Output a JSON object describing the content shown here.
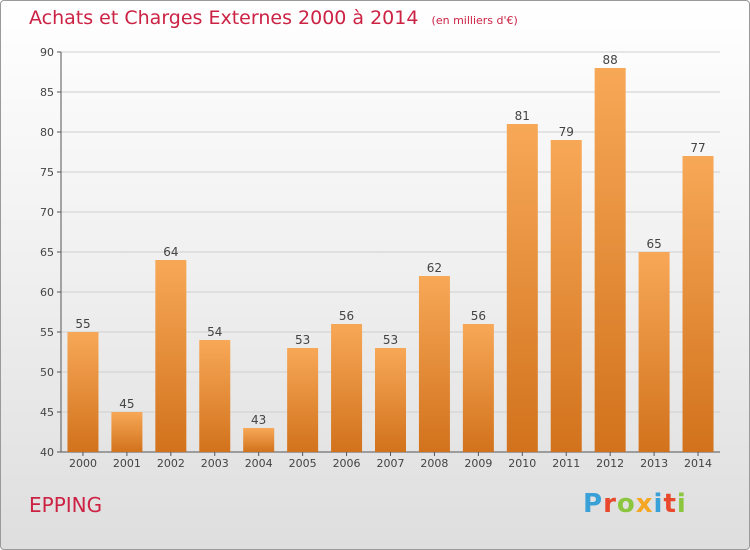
{
  "header": {
    "title": "Achats et Charges Externes 2000 à 2014",
    "unit": "(en milliers d'€)"
  },
  "footer": {
    "town": "EPPING",
    "brand": "Proxiti"
  },
  "colors": {
    "title": "#cc2244",
    "bar_light": "#f7a857",
    "bar_dark": "#d2721c",
    "grid": "#cfcfcf",
    "axis": "#555555"
  },
  "chart_data": {
    "type": "bar",
    "categories": [
      "2000",
      "2001",
      "2002",
      "2003",
      "2004",
      "2005",
      "2006",
      "2007",
      "2008",
      "2009",
      "2010",
      "2011",
      "2012",
      "2013",
      "2014"
    ],
    "values": [
      55,
      45,
      64,
      54,
      43,
      53,
      56,
      53,
      62,
      56,
      81,
      79,
      88,
      65,
      77
    ],
    "ylim": [
      40,
      90
    ],
    "yticks": [
      40,
      45,
      50,
      55,
      60,
      65,
      70,
      75,
      80,
      85,
      90
    ],
    "grid": true,
    "data_labels": true
  }
}
